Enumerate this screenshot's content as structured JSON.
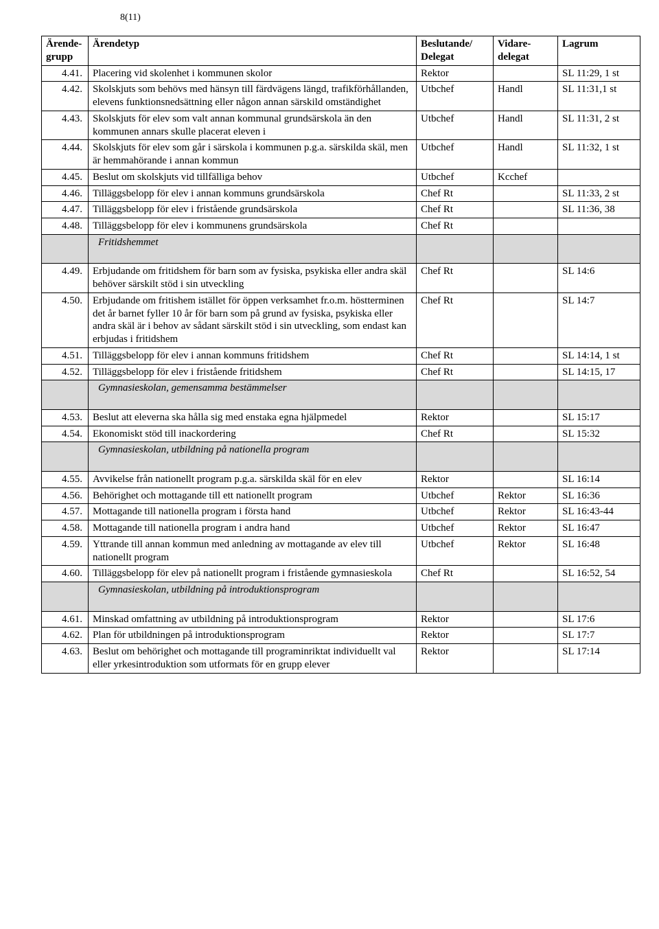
{
  "page_indicator": "8(11)",
  "headers": {
    "col1a": "Ärende-",
    "col1b": "grupp",
    "col2": "Ärendetyp",
    "col3a": "Beslutande/",
    "col3b": "Delegat",
    "col4a": "Vidare-",
    "col4b": "delegat",
    "col5": "Lagrum"
  },
  "rows": [
    {
      "type": "row",
      "n": "4.41.",
      "t": "Placering vid skolenhet i kommunen skolor",
      "d": "Rektor",
      "v": "",
      "l": "SL 11:29, 1 st"
    },
    {
      "type": "row",
      "n": "4.42.",
      "t": "Skolskjuts som behövs med hänsyn till färdvägens längd, trafikförhållanden, elevens funktionsnedsättning eller någon annan särskild omständighet",
      "d": "Utbchef",
      "v": "Handl",
      "l": "SL 11:31,1 st"
    },
    {
      "type": "row",
      "n": "4.43.",
      "t": "Skolskjuts för elev som valt annan kommunal grundsärskola än den kommunen annars skulle placerat eleven i",
      "d": "Utbchef",
      "v": "Handl",
      "l": "SL 11:31, 2 st"
    },
    {
      "type": "row",
      "n": "4.44.",
      "t": "Skolskjuts för elev som går i särskola i kommunen p.g.a. särskilda skäl, men är hemmahörande i annan kommun",
      "d": "Utbchef",
      "v": "Handl",
      "l": "SL 11:32, 1 st"
    },
    {
      "type": "row",
      "n": "4.45.",
      "t": "Beslut om skolskjuts vid tillfälliga behov",
      "d": "Utbchef",
      "v": "Kcchef",
      "l": ""
    },
    {
      "type": "row",
      "n": "4.46.",
      "t": "Tilläggsbelopp för elev i annan kommuns grundsärskola",
      "d": "Chef Rt",
      "v": "",
      "l": "SL 11:33, 2 st"
    },
    {
      "type": "row",
      "n": "4.47.",
      "t": "Tilläggsbelopp för elev i fristående grundsärskola",
      "d": "Chef Rt",
      "v": "",
      "l": "SL 11:36, 38"
    },
    {
      "type": "row",
      "n": "4.48.",
      "t": "Tilläggsbelopp för elev i kommunens grundsärskola",
      "d": "Chef Rt",
      "v": "",
      "l": ""
    },
    {
      "type": "section",
      "label": "Fritidshemmet"
    },
    {
      "type": "row",
      "n": "4.49.",
      "t": "Erbjudande om fritidshem för barn som av fysiska, psykiska eller andra skäl behöver särskilt stöd i sin utveckling",
      "d": "Chef Rt",
      "v": "",
      "l": "SL 14:6"
    },
    {
      "type": "row",
      "n": "4.50.",
      "t": "Erbjudande om fritishem istället för öppen verksamhet fr.o.m. höstterminen det år barnet fyller 10 år för barn som på grund av fysiska, psykiska eller andra skäl är i behov av sådant särskilt stöd i sin utveckling, som endast kan erbjudas i fritidshem",
      "d": "Chef Rt",
      "v": "",
      "l": "SL 14:7"
    },
    {
      "type": "row",
      "n": "4.51.",
      "t": "Tilläggsbelopp för elev i annan kommuns fritidshem",
      "d": "Chef Rt",
      "v": "",
      "l": "SL 14:14, 1 st"
    },
    {
      "type": "row",
      "n": "4.52.",
      "t": "Tilläggsbelopp för elev i fristående fritidshem",
      "d": "Chef Rt",
      "v": "",
      "l": "SL 14:15, 17"
    },
    {
      "type": "section",
      "label": "Gymnasieskolan, gemensamma bestämmelser"
    },
    {
      "type": "row",
      "n": "4.53.",
      "t": "Beslut att eleverna ska hålla sig med enstaka egna hjälpmedel",
      "d": "Rektor",
      "v": "",
      "l": "SL 15:17"
    },
    {
      "type": "row",
      "n": "4.54.",
      "t": "Ekonomiskt stöd till inackordering",
      "d": "Chef Rt",
      "v": "",
      "l": "SL 15:32"
    },
    {
      "type": "section",
      "label": "Gymnasieskolan, utbildning på nationella program"
    },
    {
      "type": "row",
      "n": "4.55.",
      "t": "Avvikelse från nationellt program p.g.a. särskilda skäl för en elev",
      "d": "Rektor",
      "v": "",
      "l": "SL 16:14"
    },
    {
      "type": "row",
      "n": "4.56.",
      "t": "Behörighet och mottagande till ett nationellt program",
      "d": "Utbchef",
      "v": "Rektor",
      "l": "SL 16:36"
    },
    {
      "type": "row",
      "n": "4.57.",
      "t": "Mottagande till nationella program i första hand",
      "d": "Utbchef",
      "v": "Rektor",
      "l": "SL 16:43-44"
    },
    {
      "type": "row",
      "n": "4.58.",
      "t": "Mottagande till nationella program i andra hand",
      "d": "Utbchef",
      "v": "Rektor",
      "l": "SL 16:47"
    },
    {
      "type": "row",
      "n": "4.59.",
      "t": "Yttrande till annan kommun med anledning av mottagande av elev till nationellt program",
      "d": "Utbchef",
      "v": "Rektor",
      "l": "SL 16:48"
    },
    {
      "type": "row",
      "n": "4.60.",
      "t": "Tilläggsbelopp för elev på nationellt program i fristående gymnasieskola",
      "d": "Chef Rt",
      "v": "",
      "l": "SL 16:52, 54"
    },
    {
      "type": "section",
      "label": "Gymnasieskolan, utbildning på introduktionsprogram"
    },
    {
      "type": "row",
      "n": "4.61.",
      "t": "Minskad omfattning av utbildning på introduktionsprogram",
      "d": "Rektor",
      "v": "",
      "l": "SL 17:6"
    },
    {
      "type": "row",
      "n": "4.62.",
      "t": "Plan för utbildningen på introduktionsprogram",
      "d": "Rektor",
      "v": "",
      "l": "SL 17:7"
    },
    {
      "type": "row",
      "n": "4.63.",
      "t": "Beslut om behörighet och mottagande till programinriktat individuellt val eller yrkesintroduktion som utformats för en grupp elever",
      "d": "Rektor",
      "v": "",
      "l": "SL 17:14"
    }
  ]
}
